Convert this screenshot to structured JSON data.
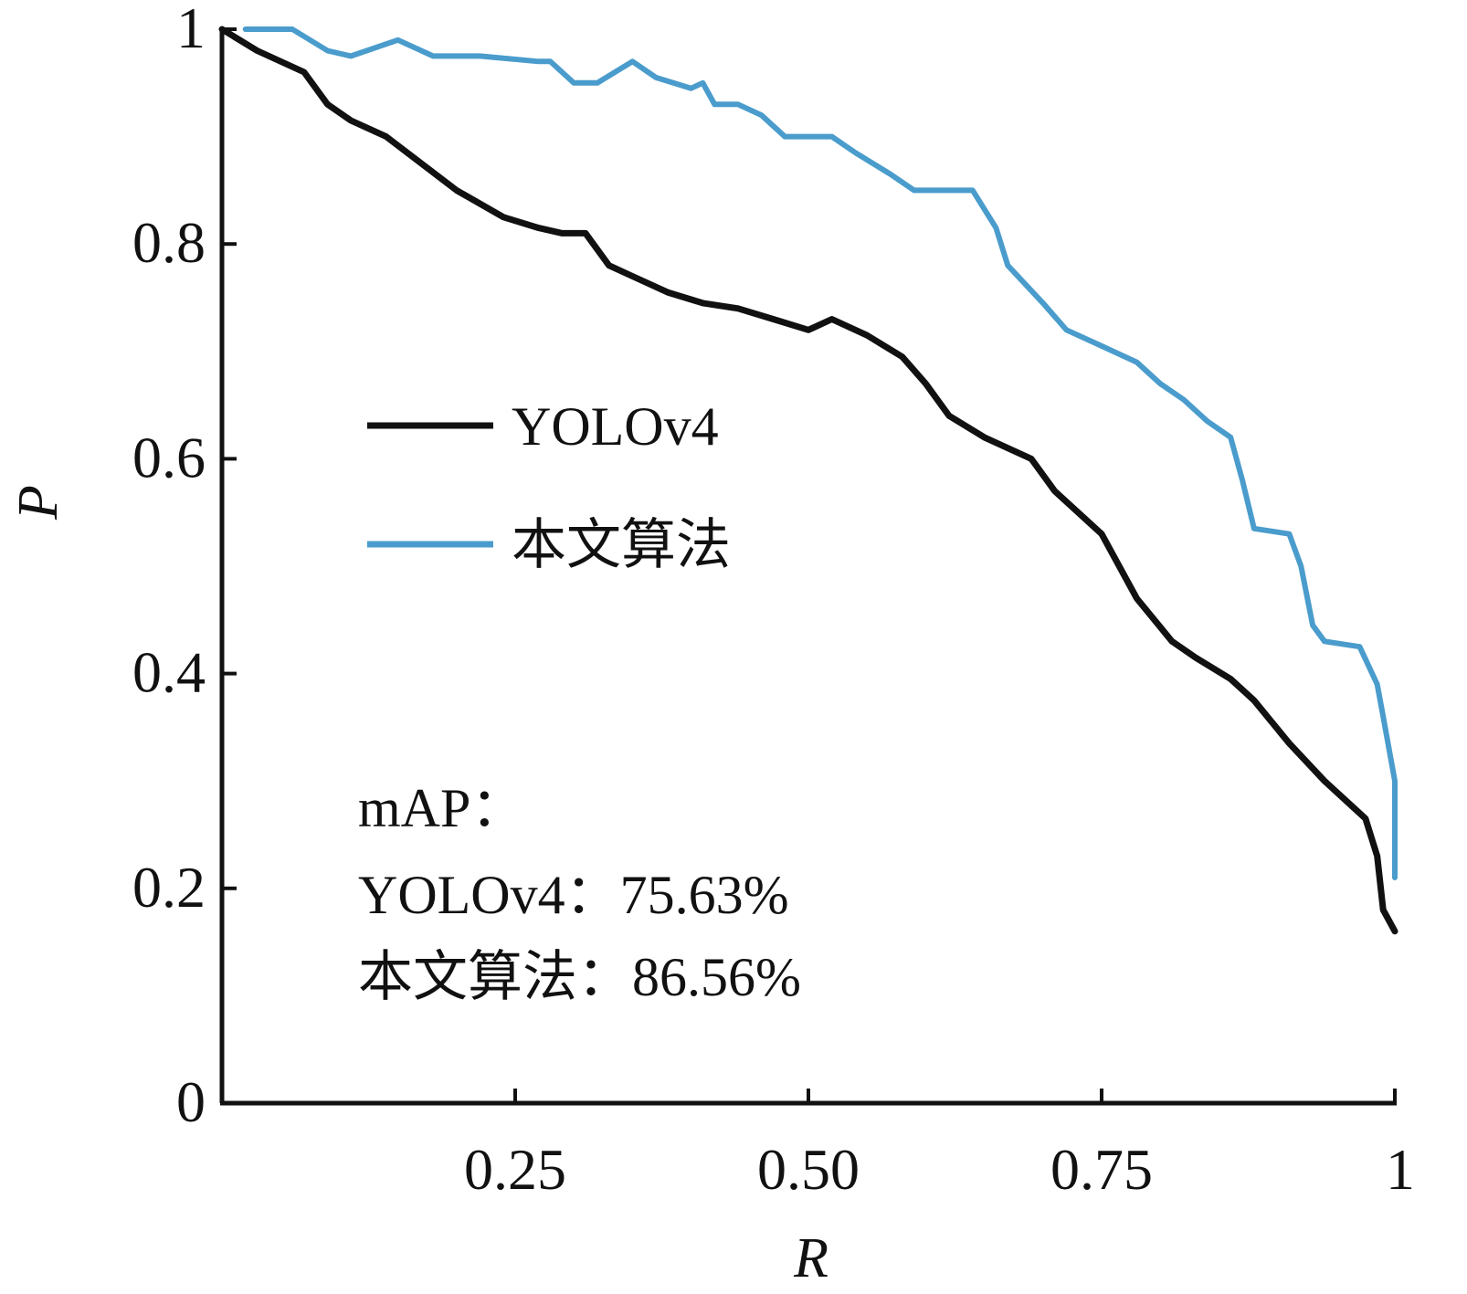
{
  "chart_data": {
    "type": "line",
    "xlabel": "R",
    "ylabel": "P",
    "xlim": [
      0,
      1
    ],
    "ylim": [
      0,
      1
    ],
    "x_ticks": [
      0.25,
      0.5,
      0.75,
      1
    ],
    "x_tick_labels": [
      "0.25",
      "0.50",
      "0.75",
      "1"
    ],
    "y_ticks": [
      0,
      0.2,
      0.4,
      0.6,
      0.8,
      1
    ],
    "y_tick_labels": [
      "0",
      "0.2",
      "0.4",
      "0.6",
      "0.8",
      "1"
    ],
    "grid": false,
    "legend_position": "middle-left",
    "series": [
      {
        "name": "YOLOv4",
        "color": "#111111",
        "points": [
          [
            0.0,
            1.0
          ],
          [
            0.03,
            0.98
          ],
          [
            0.07,
            0.96
          ],
          [
            0.09,
            0.93
          ],
          [
            0.11,
            0.915
          ],
          [
            0.14,
            0.9
          ],
          [
            0.17,
            0.875
          ],
          [
            0.2,
            0.85
          ],
          [
            0.24,
            0.825
          ],
          [
            0.27,
            0.815
          ],
          [
            0.29,
            0.81
          ],
          [
            0.31,
            0.81
          ],
          [
            0.33,
            0.78
          ],
          [
            0.35,
            0.77
          ],
          [
            0.38,
            0.755
          ],
          [
            0.41,
            0.745
          ],
          [
            0.44,
            0.74
          ],
          [
            0.47,
            0.73
          ],
          [
            0.5,
            0.72
          ],
          [
            0.52,
            0.73
          ],
          [
            0.55,
            0.715
          ],
          [
            0.58,
            0.695
          ],
          [
            0.6,
            0.67
          ],
          [
            0.62,
            0.64
          ],
          [
            0.65,
            0.62
          ],
          [
            0.69,
            0.6
          ],
          [
            0.71,
            0.57
          ],
          [
            0.75,
            0.53
          ],
          [
            0.78,
            0.47
          ],
          [
            0.81,
            0.43
          ],
          [
            0.83,
            0.415
          ],
          [
            0.86,
            0.395
          ],
          [
            0.88,
            0.375
          ],
          [
            0.91,
            0.335
          ],
          [
            0.94,
            0.3
          ],
          [
            0.975,
            0.265
          ],
          [
            0.985,
            0.23
          ],
          [
            0.99,
            0.18
          ],
          [
            1.0,
            0.16
          ]
        ]
      },
      {
        "name": "本文算法",
        "color": "#4a9ccc",
        "points": [
          [
            0.02,
            1.0
          ],
          [
            0.06,
            1.0
          ],
          [
            0.09,
            0.98
          ],
          [
            0.11,
            0.975
          ],
          [
            0.15,
            0.99
          ],
          [
            0.18,
            0.975
          ],
          [
            0.22,
            0.975
          ],
          [
            0.27,
            0.97
          ],
          [
            0.28,
            0.97
          ],
          [
            0.3,
            0.95
          ],
          [
            0.32,
            0.95
          ],
          [
            0.35,
            0.97
          ],
          [
            0.37,
            0.955
          ],
          [
            0.4,
            0.945
          ],
          [
            0.41,
            0.95
          ],
          [
            0.42,
            0.93
          ],
          [
            0.44,
            0.93
          ],
          [
            0.46,
            0.92
          ],
          [
            0.48,
            0.9
          ],
          [
            0.52,
            0.9
          ],
          [
            0.54,
            0.885
          ],
          [
            0.57,
            0.865
          ],
          [
            0.59,
            0.85
          ],
          [
            0.61,
            0.85
          ],
          [
            0.64,
            0.85
          ],
          [
            0.66,
            0.815
          ],
          [
            0.67,
            0.78
          ],
          [
            0.7,
            0.745
          ],
          [
            0.72,
            0.72
          ],
          [
            0.75,
            0.705
          ],
          [
            0.78,
            0.69
          ],
          [
            0.8,
            0.67
          ],
          [
            0.82,
            0.655
          ],
          [
            0.84,
            0.635
          ],
          [
            0.86,
            0.62
          ],
          [
            0.87,
            0.58
          ],
          [
            0.88,
            0.535
          ],
          [
            0.91,
            0.53
          ],
          [
            0.92,
            0.5
          ],
          [
            0.93,
            0.445
          ],
          [
            0.94,
            0.43
          ],
          [
            0.97,
            0.425
          ],
          [
            0.985,
            0.39
          ],
          [
            0.99,
            0.36
          ],
          [
            1.0,
            0.3
          ],
          [
            1.0,
            0.21
          ]
        ]
      }
    ],
    "annotation": {
      "lines": [
        "mAP：",
        "YOLOv4：75.63%",
        "本文算法：86.56%"
      ]
    }
  }
}
